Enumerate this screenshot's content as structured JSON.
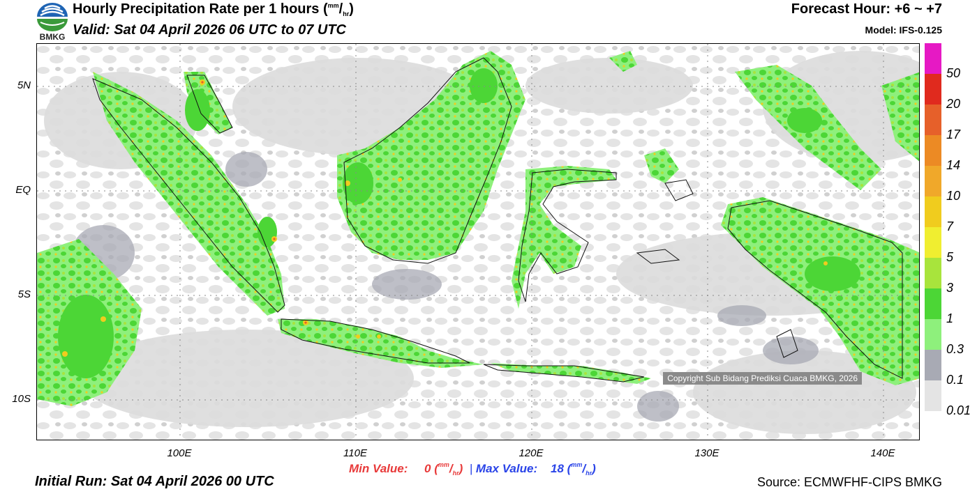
{
  "header": {
    "title": "Hourly Precipitation Rate per 1 hours",
    "unit_num": "mm",
    "unit_den": "hr",
    "valid": "Valid: Sat 04 April 2026 06 UTC to 07 UTC",
    "forecast_hour": "Forecast Hour: +6 ~ +7",
    "model": "Model: IFS-0.125",
    "logo_text": "BMKG"
  },
  "map": {
    "lat_labels": [
      "5N",
      "EQ",
      "5S",
      "10S"
    ],
    "lon_labels": [
      "100E",
      "110E",
      "120E",
      "130E",
      "140E"
    ],
    "copyright": "Copyright Sub Bidang Prediksi Cuaca BMKG, 2026"
  },
  "legend": {
    "labels": [
      "50",
      "20",
      "17",
      "14",
      "10",
      "7",
      "5",
      "3",
      "1",
      "0.3",
      "0.1",
      "0.01"
    ],
    "colors": [
      "#e619c4",
      "#e02a1e",
      "#e6602a",
      "#ec8a24",
      "#f0a82a",
      "#f0cc1e",
      "#f0ee30",
      "#a8e43c",
      "#4cd636",
      "#8ef07c",
      "#a8aab4",
      "#e4e4e4"
    ]
  },
  "footer": {
    "min_label": "Min Value:",
    "min_value": "0",
    "max_label": "Max Value:",
    "max_value": "18",
    "separator": "|",
    "unit_num": "mm",
    "unit_den": "hr",
    "initial_run": "Initial Run: Sat 04 April 2026 00 UTC",
    "source": "Source: ECMWFHF-CIPS BMKG"
  }
}
